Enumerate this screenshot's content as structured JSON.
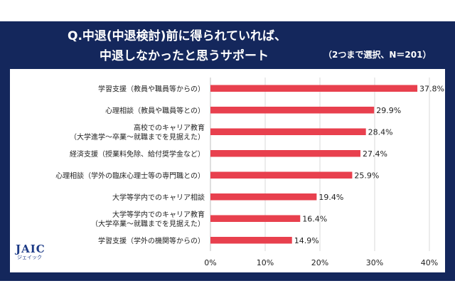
{
  "header": {
    "title_line1": "Q.中退(中退検討)前に得られていれば、",
    "title_line2": "中退しなかったと思うサポート",
    "subtitle": "（2つまで選択、N＝201）"
  },
  "logo": {
    "main": "JAIC",
    "sub": "ジェイック"
  },
  "colors": {
    "background": "#14275c",
    "bar": "#e8404e",
    "grid": "#d9d9d9",
    "panel": "#ffffff"
  },
  "chart_data": {
    "type": "bar",
    "orientation": "horizontal",
    "categories": [
      [
        "学習支援（教員や職員等からの）"
      ],
      [
        "心理相談（教員や職員等との）"
      ],
      [
        "高校でのキャリア教育",
        "（大学進学～卒業～就職までを見据えた）"
      ],
      [
        "経済支援（授業料免除、給付奨学金など）"
      ],
      [
        "心理相談（学外の臨床心理士等の専門職との）"
      ],
      [
        "大学等学内でのキャリア相談"
      ],
      [
        "大学等学内でのキャリア教育",
        "（大学卒業～就職までを見据えた）"
      ],
      [
        "学習支援（学外の機関等からの）"
      ]
    ],
    "values": [
      37.8,
      29.9,
      28.4,
      27.4,
      25.9,
      19.4,
      16.4,
      14.9
    ],
    "value_labels": [
      "37.8%",
      "29.9%",
      "28.4%",
      "27.4%",
      "25.9%",
      "19.4%",
      "16.4%",
      "14.9%"
    ],
    "xlim": [
      0,
      40
    ],
    "xticks": [
      0,
      10,
      20,
      30,
      40
    ],
    "xtick_labels": [
      "0%",
      "10%",
      "20%",
      "30%",
      "40%"
    ],
    "grid": true,
    "legend": "none"
  }
}
